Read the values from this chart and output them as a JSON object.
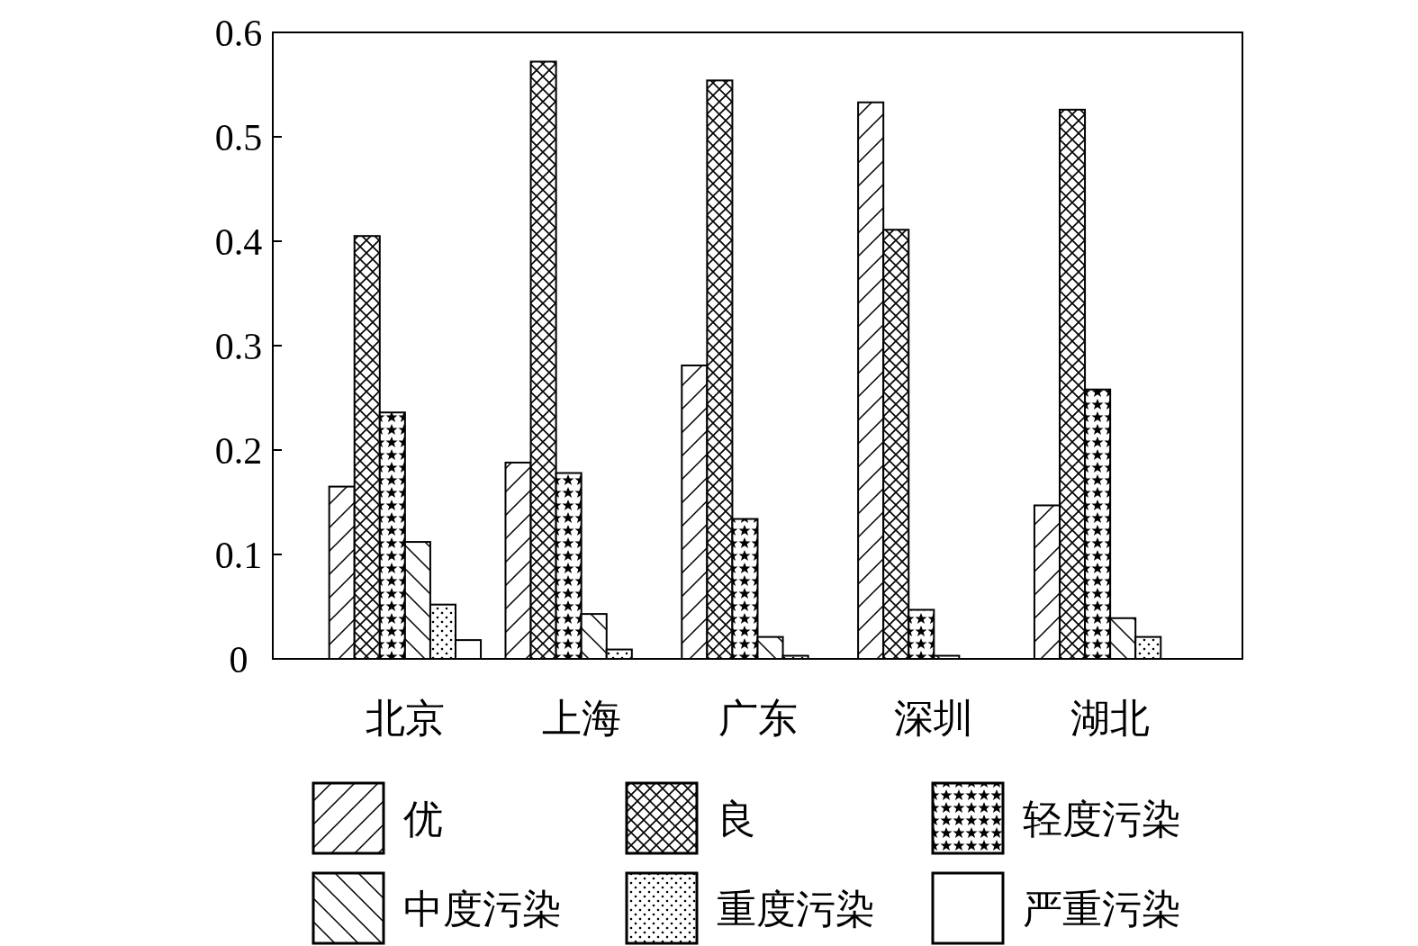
{
  "chart_data": {
    "type": "bar",
    "categories": [
      "北京",
      "上海",
      "广东",
      "深圳",
      "湖北"
    ],
    "series": [
      {
        "name": "优",
        "color": "#000000",
        "values": [
          0.165,
          0.188,
          0.281,
          0.533,
          0.147
        ]
      },
      {
        "name": "良",
        "color": "#000000",
        "values": [
          0.405,
          0.572,
          0.554,
          0.411,
          0.526
        ]
      },
      {
        "name": "轻度污染",
        "color": "#000000",
        "values": [
          0.236,
          0.178,
          0.134,
          0.047,
          0.258
        ]
      },
      {
        "name": "中度污染",
        "color": "#000000",
        "values": [
          0.112,
          0.043,
          0.021,
          0.003,
          0.039
        ]
      },
      {
        "name": "重度污染",
        "color": "#000000",
        "values": [
          0.052,
          0.009,
          0.003,
          0,
          0.021
        ]
      },
      {
        "name": "严重污染",
        "color": "#000000",
        "values": [
          0.018,
          0,
          0,
          0,
          0
        ]
      }
    ],
    "ylim": [
      0,
      0.6
    ],
    "yticks": [
      {
        "value": 0,
        "label": "0"
      },
      0.1,
      0.2,
      0.3,
      0.4,
      0.5,
      0.6
    ],
    "grid": false,
    "legend": "bottom"
  }
}
